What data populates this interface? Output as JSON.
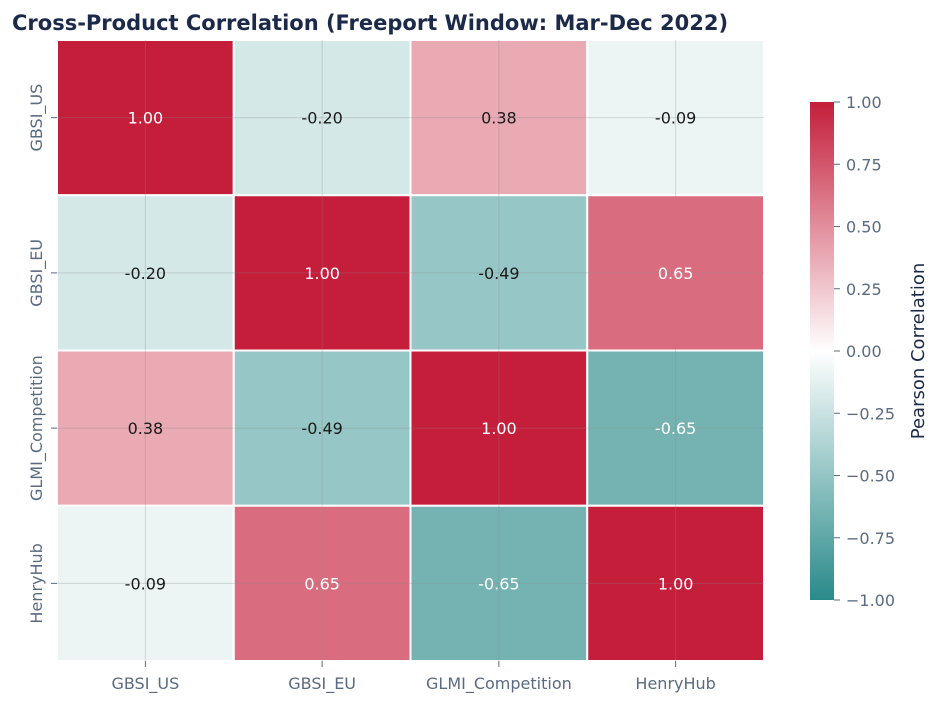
{
  "chart_data": {
    "type": "heatmap",
    "title": "Cross-Product Correlation (Freeport Window: Mar-Dec 2022)",
    "x_categories": [
      "GBSI_US",
      "GBSI_EU",
      "GLMI_Competition",
      "HenryHub"
    ],
    "y_categories": [
      "GBSI_US",
      "GBSI_EU",
      "GLMI_Competition",
      "HenryHub"
    ],
    "values": [
      [
        1.0,
        -0.2,
        0.38,
        -0.09
      ],
      [
        -0.2,
        1.0,
        -0.49,
        0.65
      ],
      [
        0.38,
        -0.49,
        1.0,
        -0.65
      ],
      [
        -0.09,
        0.65,
        -0.65,
        1.0
      ]
    ],
    "value_format": "0.00",
    "colorbar": {
      "label": "Pearson Correlation",
      "range": [
        -1,
        1
      ],
      "ticks": [
        "1.00",
        "0.75",
        "0.50",
        "0.25",
        "0.00",
        "−0.25",
        "−0.50",
        "−0.75",
        "−1.00"
      ],
      "tick_values": [
        1,
        0.75,
        0.5,
        0.25,
        0,
        -0.25,
        -0.5,
        -0.75,
        -1
      ],
      "colors": {
        "min": "#2a8a8a",
        "mid": "#ffffff",
        "max": "#c41e3a"
      }
    },
    "grid": true,
    "colors": {
      "title": "#1c2a4a",
      "tick_label": "#5a6a80",
      "annot_dark": "#1a1a1a",
      "annot_light": "#ffffff"
    }
  }
}
